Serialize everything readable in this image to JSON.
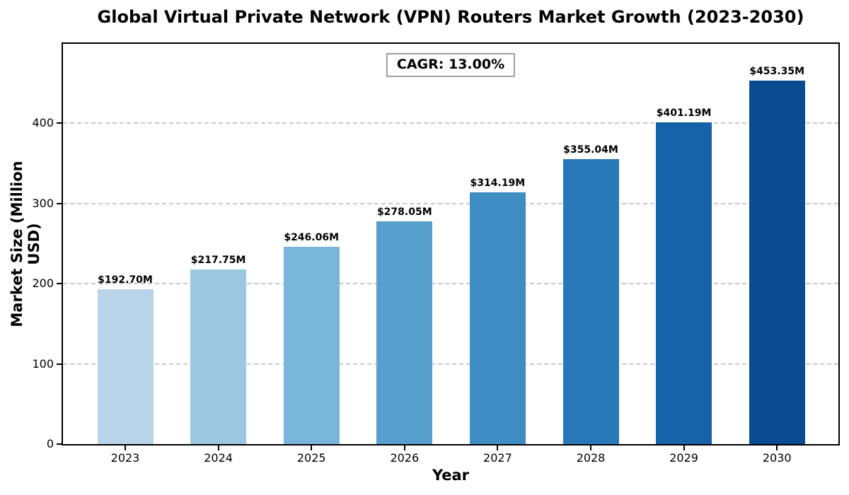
{
  "chart_data": {
    "type": "bar",
    "title": "Global Virtual Private Network (VPN) Routers Market Growth (2023-2030)",
    "xlabel": "Year",
    "ylabel": "Market Size (Million USD)",
    "categories": [
      "2023",
      "2024",
      "2025",
      "2026",
      "2027",
      "2028",
      "2029",
      "2030"
    ],
    "values": [
      192.7,
      217.75,
      246.06,
      278.05,
      314.19,
      355.04,
      401.19,
      453.35
    ],
    "bar_labels": [
      "$192.70M",
      "$217.75M",
      "$246.06M",
      "$278.05M",
      "$314.19M",
      "$355.04M",
      "$401.19M",
      "$453.35M"
    ],
    "bar_colors": [
      "#b9d4e9",
      "#9cc7e0",
      "#7ab6d9",
      "#57a0ce",
      "#3e8ec4",
      "#2979b9",
      "#1663aa",
      "#0b4b92"
    ],
    "annotation": "CAGR: 13.00%",
    "yticks": [
      0,
      100,
      200,
      300,
      400
    ],
    "ylim": [
      0,
      499
    ],
    "grid": "horizontal-dashed",
    "legend": "none"
  },
  "colors": {
    "grid": "#c9c9c9",
    "spine": "#000000",
    "annotation_border": "#a0a0a0",
    "background": "#ffffff",
    "text": "#000000"
  }
}
